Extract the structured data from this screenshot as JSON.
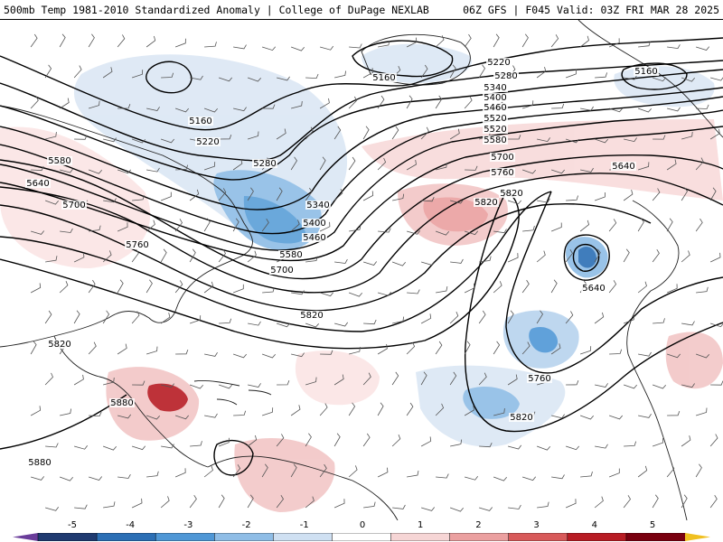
{
  "title": {
    "left": "500mb Temp 1981-2010 Standardized Anomaly | College of DuPage NEXLAB",
    "right": "06Z GFS | F045 Valid: 03Z FRI MAR 28 2025"
  },
  "contour_labels": [
    "5160",
    "5160",
    "5160",
    "5220",
    "5220",
    "5280",
    "5280",
    "5340",
    "5340",
    "5400",
    "5400",
    "5460",
    "5460",
    "5520",
    "5520",
    "5580",
    "5580",
    "5580",
    "5640",
    "5640",
    "5640",
    "5700",
    "5700",
    "5700",
    "5760",
    "5760",
    "5760",
    "5820",
    "5820",
    "5820",
    "5820",
    "5820",
    "5880",
    "5880"
  ],
  "colorbar": {
    "tick_labels": [
      "-5",
      "-4",
      "-3",
      "-2",
      "-1",
      "0",
      "1",
      "2",
      "3",
      "4",
      "5"
    ],
    "colors": [
      "#6a3d9a",
      "#1f3a70",
      "#2c6fb5",
      "#4f97d6",
      "#8fbde6",
      "#cfe0f2",
      "#ffffff",
      "#f6d5d5",
      "#eba0a0",
      "#d85a5a",
      "#b81c24",
      "#7a0010",
      "#f0c020"
    ]
  }
}
